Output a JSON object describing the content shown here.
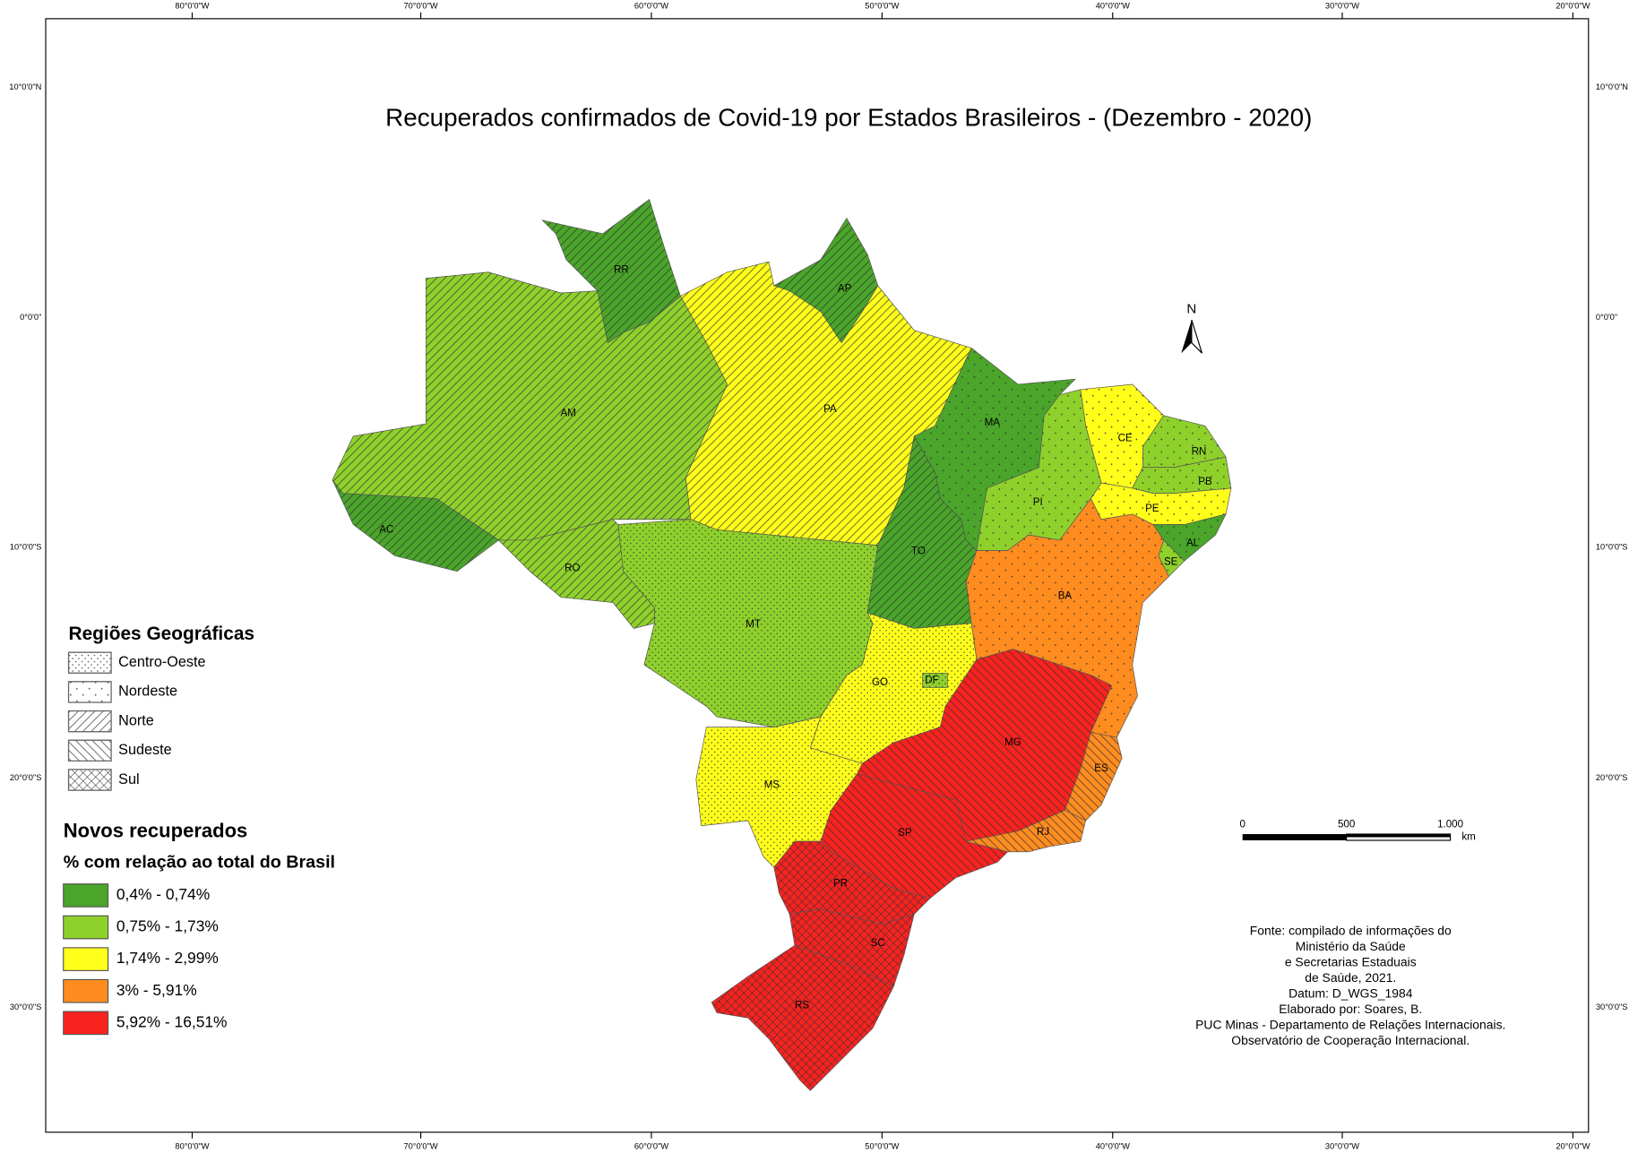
{
  "title": "Recuperados confirmados de Covid-19 por Estados Brasileiros - (Dezembro - 2020)",
  "graticule": {
    "longitudes": [
      "80°0'0\"W",
      "70°0'0\"W",
      "60°0'0\"W",
      "50°0'0\"W",
      "40°0'0\"W",
      "30°0'0\"W",
      "20°0'0\"W"
    ],
    "latitudes": [
      "10°0'0\"N",
      "0°0'0\"",
      "10°0'0\"S",
      "20°0'0\"S",
      "30°0'0\"S"
    ]
  },
  "legend_regions": {
    "title": "Regiões Geográficas",
    "items": [
      "Centro-Oeste",
      "Nordeste",
      "Norte",
      "Sudeste",
      "Sul"
    ]
  },
  "legend_classes": {
    "title": "Novos recuperados",
    "subtitle": "% com relação ao total do Brasil",
    "items": [
      {
        "label": "0,4% - 0,74%",
        "color": "#4aa52a"
      },
      {
        "label": "0,75% - 1,73%",
        "color": "#8fd12b"
      },
      {
        "label": "1,74% - 2,99%",
        "color": "#ffff1a"
      },
      {
        "label": "3% - 5,91%",
        "color": "#ff8c1f"
      },
      {
        "label": "5,92% - 16,51%",
        "color": "#f8221f"
      }
    ]
  },
  "north": "N",
  "scale_bar": {
    "ticks": [
      "0",
      "500",
      "1.000"
    ],
    "unit": "km"
  },
  "states": [
    "RR",
    "AP",
    "AM",
    "PA",
    "MA",
    "CE",
    "RN",
    "PB",
    "PI",
    "PE",
    "AC",
    "AL",
    "SE",
    "TO",
    "RO",
    "BA",
    "MT",
    "GO",
    "DF",
    "MG",
    "ES",
    "MS",
    "SP",
    "RJ",
    "PR",
    "SC",
    "RS"
  ],
  "source": [
    "Fonte: compilado de informações do",
    "Ministério da Saúde",
    "e Secretarias Estaduais",
    "de Saúde, 2021.",
    "Datum: D_WGS_1984",
    "Elaborado por: Soares, B.",
    "PUC Minas - Departamento de Relações Internacionais.",
    "Observatório de Cooperação Internacional."
  ]
}
